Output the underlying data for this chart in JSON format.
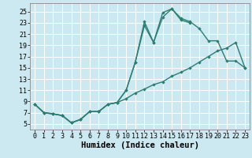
{
  "xlabel": "Humidex (Indice chaleur)",
  "bg_color": "#cce8f0",
  "grid_color": "#ffffff",
  "line_color": "#2e7d72",
  "marker": "D",
  "markersize": 2.2,
  "linewidth": 1.0,
  "xlim": [
    -0.5,
    23.5
  ],
  "ylim": [
    4,
    26.5
  ],
  "yticks": [
    5,
    7,
    9,
    11,
    13,
    15,
    17,
    19,
    21,
    23,
    25
  ],
  "xticks": [
    0,
    1,
    2,
    3,
    4,
    5,
    6,
    7,
    8,
    9,
    10,
    11,
    12,
    13,
    14,
    15,
    16,
    17,
    18,
    19,
    20,
    21,
    22,
    23
  ],
  "line1_x": [
    0,
    1,
    2,
    3,
    4,
    5,
    6,
    7,
    8,
    9,
    10,
    11,
    12,
    13,
    14,
    15,
    16,
    17
  ],
  "line1_y": [
    8.5,
    7.0,
    6.8,
    6.5,
    5.2,
    5.8,
    7.2,
    7.2,
    8.5,
    8.8,
    11.0,
    16.0,
    23.2,
    19.5,
    24.8,
    25.5,
    23.5,
    23.0
  ],
  "line2_x": [
    0,
    1,
    2,
    3,
    4,
    5,
    6,
    7,
    8,
    9,
    10,
    11,
    12,
    13,
    14,
    15,
    16,
    17,
    18,
    19,
    20,
    21,
    22,
    23
  ],
  "line2_y": [
    8.5,
    7.0,
    6.8,
    6.5,
    5.2,
    5.8,
    7.2,
    7.2,
    8.5,
    8.8,
    11.0,
    16.0,
    22.5,
    19.5,
    24.0,
    25.5,
    23.8,
    23.2,
    22.0,
    19.8,
    19.8,
    16.2,
    16.2,
    15.0
  ],
  "line3_x": [
    0,
    1,
    2,
    3,
    4,
    5,
    6,
    7,
    8,
    9,
    10,
    11,
    12,
    13,
    14,
    15,
    16,
    17,
    18,
    19,
    20,
    21,
    22,
    23
  ],
  "line3_y": [
    8.5,
    7.0,
    6.8,
    6.5,
    5.2,
    5.8,
    7.2,
    7.2,
    8.5,
    8.8,
    9.5,
    10.5,
    11.2,
    12.0,
    12.5,
    13.5,
    14.2,
    15.0,
    16.0,
    17.0,
    18.0,
    18.5,
    19.5,
    15.0
  ],
  "font_family": "monospace",
  "tick_fontsize": 6.0,
  "xlabel_fontsize": 7.5
}
